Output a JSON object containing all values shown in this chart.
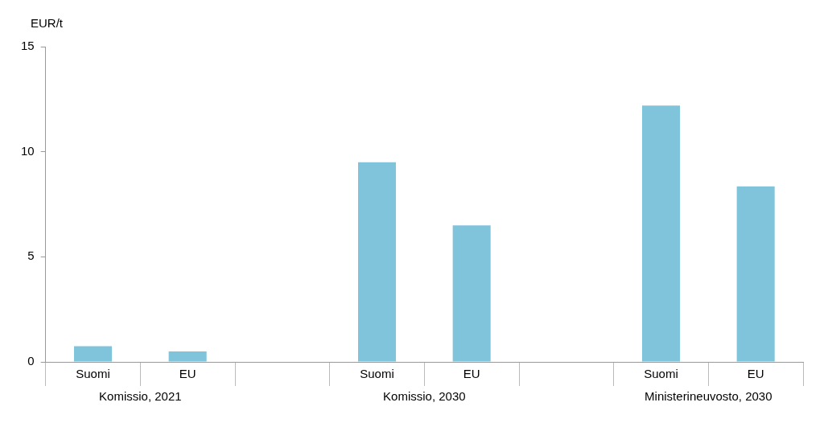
{
  "chart_data": {
    "type": "bar",
    "ylabel": "EUR/t",
    "categories": [
      "Suomi",
      "EU",
      null,
      "Suomi",
      "EU",
      null,
      "Suomi",
      "EU"
    ],
    "values": [
      0.75,
      0.5,
      null,
      9.5,
      6.5,
      null,
      12.2,
      8.35
    ],
    "color": "#80c4dc",
    "ylim": [
      0,
      15
    ],
    "yticks": [
      0,
      5,
      10,
      15
    ],
    "grid": false,
    "legend": false,
    "annotations": [
      "Komissio, 2021",
      "Komissio, 2030",
      "Ministerineuvosto, 2030"
    ]
  }
}
